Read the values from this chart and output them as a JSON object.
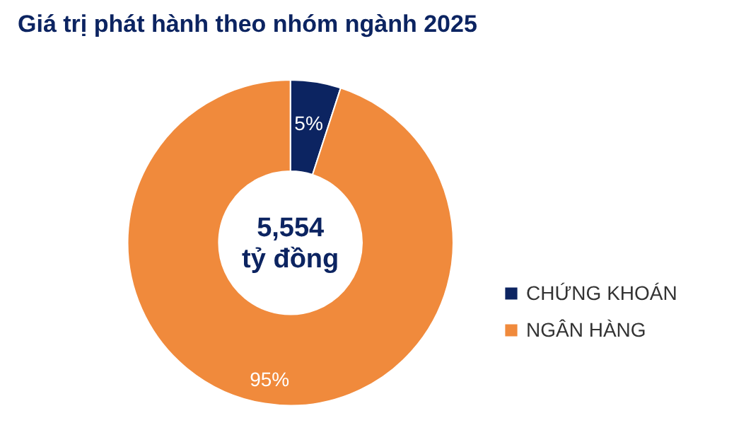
{
  "chart_data": {
    "type": "donut",
    "title": "Giá trị phát hành theo nhóm ngành 2025",
    "categories": [
      "CHỨNG KHOÁN",
      "NGÂN HÀNG"
    ],
    "values": [
      5,
      95
    ],
    "colors": [
      "#0c2461",
      "#f08a3c"
    ],
    "value_labels": [
      "5%",
      "95%"
    ],
    "annotations": [
      "5,554",
      "tỷ đồng"
    ],
    "legend": "right"
  }
}
